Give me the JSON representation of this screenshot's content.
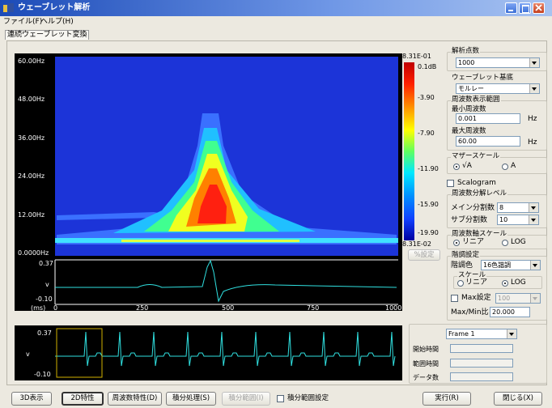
{
  "window": {
    "title": "ウェーブレット解析"
  },
  "menu": [
    "ファイル(F)",
    "ヘルプ(H)"
  ],
  "tab": "連続ウェーブレット変換",
  "scalogram": {
    "y_labels": [
      "60.00Hz",
      "48.00Hz",
      "36.00Hz",
      "24.00Hz",
      "12.00Hz",
      "0.0000Hz"
    ],
    "colorbar_max": "8.31E-01",
    "colorbar_labels": [
      "0.1dB",
      "-3.90",
      "-7.90",
      "-11.90",
      "-15.90",
      "-19.90"
    ],
    "colorbar_min": "8.31E-02"
  },
  "signal": {
    "y_labels": [
      "0.37",
      "v",
      "-0.10"
    ],
    "x_unit": "(ms)",
    "x_labels": [
      "0",
      "250",
      "500",
      "750",
      "1000"
    ]
  },
  "percent_button": "%設定",
  "settings": {
    "points": {
      "label": "解析点数",
      "value": "1000"
    },
    "basis": {
      "label": "ウェーブレット基底",
      "value": "モルレー"
    },
    "range": {
      "label": "周波数表示範囲",
      "min_label": "最小周波数",
      "min_value": "0.001",
      "max_label": "最大周波数",
      "max_value": "60.00",
      "unit": "Hz"
    },
    "mother_scale": {
      "label": "マザースケール",
      "options": [
        "√A",
        "A"
      ]
    },
    "scalogram": "Scalogram",
    "resolution": {
      "label": "周波数分解レベル",
      "main_label": "メイン分割数",
      "main_value": "8",
      "sub_label": "サブ分割数",
      "sub_value": "10"
    },
    "axis_scale": {
      "label": "周波数軸スケール",
      "options": [
        "リニア",
        "LOG"
      ]
    },
    "gradation": {
      "label": "階調設定",
      "color_label": "階調色",
      "color_value": "16色諧調",
      "scale_label": "スケール",
      "scale_options": [
        "リニア",
        "LOG"
      ],
      "max_label": "Max設定",
      "max_value": "100",
      "ratio_label": "Max/Min比",
      "ratio_value": "20.000"
    }
  },
  "overview": {
    "y_labels": [
      "0.37",
      "v",
      "-0.10"
    ]
  },
  "frame": {
    "value": "Frame 1",
    "fields": [
      "開始時間",
      "範囲時間",
      "データ数"
    ]
  },
  "buttons": [
    "3D表示",
    "2D特性",
    "周波数特性(D)",
    "積分処理(S)",
    "積分範囲(I)",
    "積分範囲設定",
    "実行(R)",
    "閉じる(X)"
  ]
}
